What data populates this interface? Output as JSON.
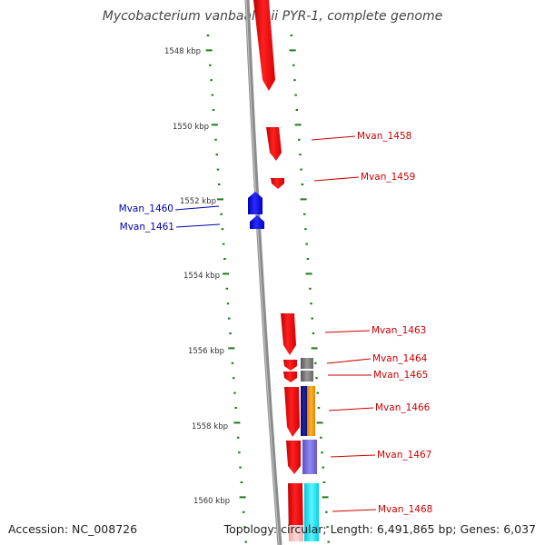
{
  "title": "Mycobacterium vanbaalenii PYR-1, complete genome",
  "footer": {
    "accession": "Accession: NC_008726",
    "summary": "Topology: circular; Length: 6,491,865 bp; Genes: 6,037"
  },
  "colors": {
    "backbone": "#8c8c8c",
    "tick": "#1a7a1a",
    "forward_gene": "#ee1111",
    "reverse_gene": "#1111dd",
    "forward_label": "#cc0000",
    "reverse_label": "#0000aa"
  },
  "ruler_labels": [
    "1548 kbp",
    "1550 kbp",
    "1552 kbp",
    "1554 kbp",
    "1556 kbp",
    "1558 kbp",
    "1560 kbp"
  ],
  "gene_labels_forward": [
    "Mvan_1458",
    "Mvan_1459",
    "Mvan_1463",
    "Mvan_1464",
    "Mvan_1465",
    "Mvan_1466",
    "Mvan_1467",
    "Mvan_1468"
  ],
  "gene_labels_reverse": [
    "Mvan_1460",
    "Mvan_1461"
  ]
}
